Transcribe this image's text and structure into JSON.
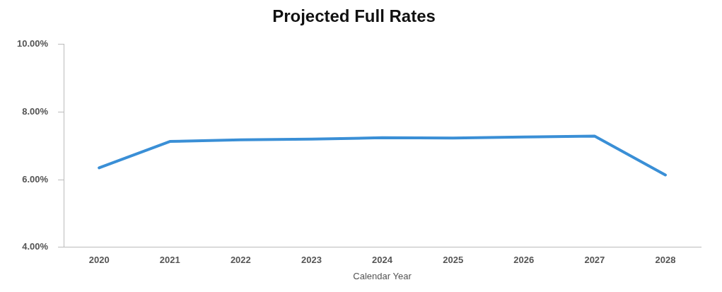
{
  "chart_data": {
    "type": "line",
    "title": "Projected Full Rates",
    "xlabel": "Calendar Year",
    "categories": [
      "2020",
      "2021",
      "2022",
      "2023",
      "2024",
      "2025",
      "2026",
      "2027",
      "2028"
    ],
    "series": [
      {
        "color": "#3a8fd6",
        "values": [
          6.35,
          7.13,
          7.18,
          7.2,
          7.24,
          7.23,
          7.26,
          7.29,
          6.14
        ]
      }
    ],
    "ylim": [
      4,
      10
    ],
    "yticks": [
      {
        "value": 4,
        "label": "4.00%"
      },
      {
        "value": 6,
        "label": "6.00%"
      },
      {
        "value": 8,
        "label": "8.00%"
      },
      {
        "value": 10,
        "label": "10.00%"
      }
    ],
    "grid": false,
    "legend": false,
    "marker": "none",
    "line_style": "solid"
  }
}
